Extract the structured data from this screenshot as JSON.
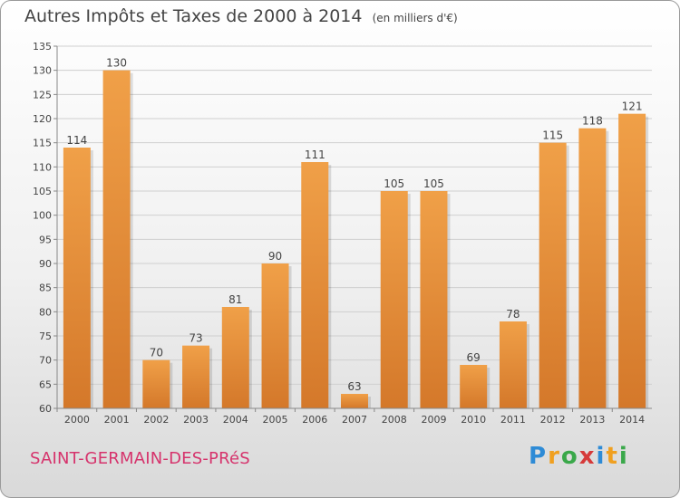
{
  "header": {
    "title": "Autres Impôts et Taxes de 2000 à 2014",
    "subtitle": "(en milliers d'€)"
  },
  "commune": "SAINT-GERMAIN-DES-PRéS",
  "brand": {
    "letters": [
      "P",
      "r",
      "o",
      "x",
      "i",
      "t",
      "i"
    ],
    "colors": [
      "#2e8bd6",
      "#f0a020",
      "#3aa84a",
      "#d63a3a",
      "#2e8bd6",
      "#f0a020",
      "#3aa84a"
    ]
  },
  "chart_data": {
    "type": "bar",
    "categories": [
      "2000",
      "2001",
      "2002",
      "2003",
      "2004",
      "2005",
      "2006",
      "2007",
      "2008",
      "2009",
      "2010",
      "2011",
      "2012",
      "2013",
      "2014"
    ],
    "values": [
      114,
      130,
      70,
      73,
      81,
      90,
      111,
      63,
      105,
      105,
      69,
      78,
      115,
      118,
      121
    ],
    "ylim": [
      60,
      135
    ],
    "yticks": [
      60,
      65,
      70,
      75,
      80,
      85,
      90,
      95,
      100,
      105,
      110,
      115,
      120,
      125,
      130,
      135
    ],
    "grid": true,
    "bar_color": "#f0a048",
    "bar_color_dark": "#d4782a"
  }
}
